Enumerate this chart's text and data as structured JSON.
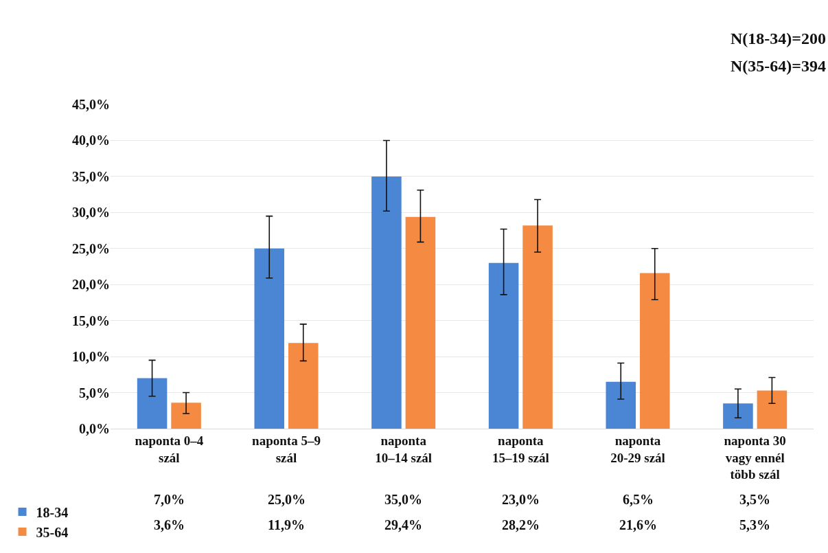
{
  "chart_data": {
    "type": "bar",
    "annotations": [
      "N(18-34)=200",
      "N(35-64)=394"
    ],
    "categories": [
      "naponta 0–4 szál",
      "naponta 5–9 szál",
      "naponta 10–14 szál",
      "naponta 15–19 szál",
      "naponta 20-29 szál",
      "naponta 30 vagy ennél több szál"
    ],
    "series": [
      {
        "name": "18-34",
        "color": "#4a86d4",
        "values": [
          7.0,
          25.0,
          35.0,
          23.0,
          6.5,
          3.5
        ],
        "value_labels": [
          "7,0%",
          "25,0%",
          "35,0%",
          "23,0%",
          "6,5%",
          "3,5%"
        ],
        "errors": [
          [
            4.5,
            9.5
          ],
          [
            20.9,
            29.5
          ],
          [
            30.2,
            40.0
          ],
          [
            18.6,
            27.7
          ],
          [
            4.1,
            9.1
          ],
          [
            1.5,
            5.5
          ]
        ]
      },
      {
        "name": "35-64",
        "color": "#f58a42",
        "values": [
          3.6,
          11.9,
          29.4,
          28.2,
          21.6,
          5.3
        ],
        "value_labels": [
          "3,6%",
          "11,9%",
          "29,4%",
          "28,2%",
          "21,6%",
          "5,3%"
        ],
        "errors": [
          [
            2.1,
            5.0
          ],
          [
            9.4,
            14.5
          ],
          [
            25.9,
            33.1
          ],
          [
            24.5,
            31.8
          ],
          [
            17.9,
            25.0
          ],
          [
            3.5,
            7.1
          ]
        ]
      }
    ],
    "ylim": [
      0,
      45
    ],
    "yticks": [
      {
        "value": 0,
        "label": "0,0%"
      },
      {
        "value": 5,
        "label": "5,0%"
      },
      {
        "value": 10,
        "label": "10,0%"
      },
      {
        "value": 15,
        "label": "15,0%"
      },
      {
        "value": 20,
        "label": "20,0%"
      },
      {
        "value": 25,
        "label": "25,0%"
      },
      {
        "value": 30,
        "label": "30,0%"
      },
      {
        "value": 35,
        "label": "35,0%"
      },
      {
        "value": 40,
        "label": "40,0%"
      },
      {
        "value": 45,
        "label": "45,0%"
      }
    ],
    "grid": "y",
    "legend": "bottom left"
  }
}
